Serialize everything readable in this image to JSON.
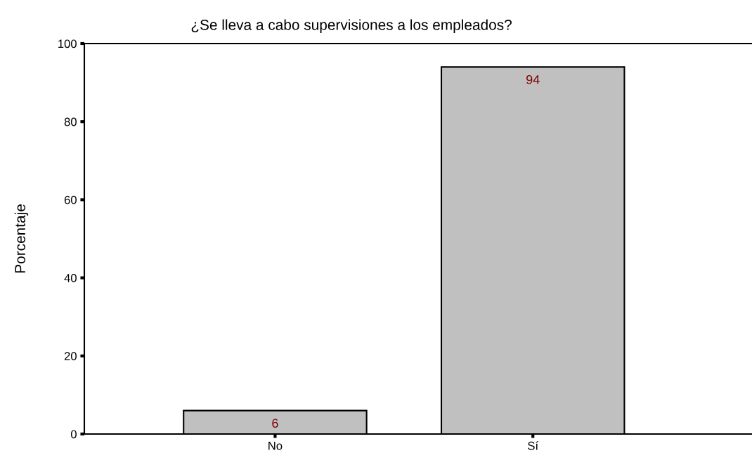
{
  "chart_data": {
    "type": "bar",
    "title": "¿Se lleva a cabo supervisiones a los empleados?",
    "ylabel": "Porcentaje",
    "categories": [
      "No",
      "Sí"
    ],
    "values": [
      6,
      94
    ],
    "color": "#c0c0c0",
    "ylim": [
      0,
      100
    ],
    "yticks": [
      0,
      20,
      40,
      60,
      80,
      100
    ],
    "grid": false,
    "data_labels": true
  }
}
